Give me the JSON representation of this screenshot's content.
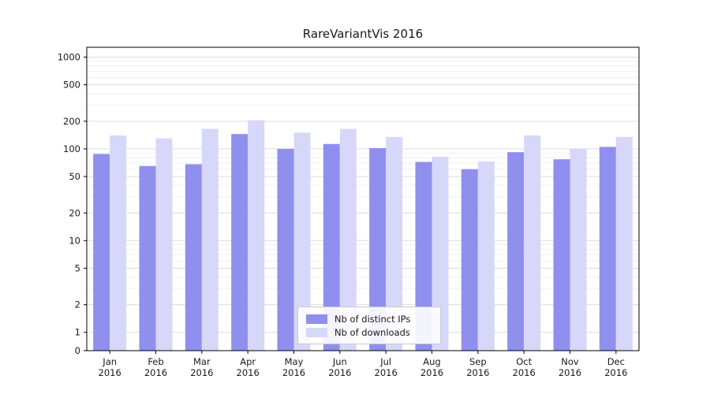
{
  "title": "RareVariantVis 2016",
  "chart_data": {
    "type": "bar",
    "scale": "symlog",
    "title": "RareVariantVis 2016",
    "categories": [
      "Jan",
      "Feb",
      "Mar",
      "Apr",
      "May",
      "Jun",
      "Jul",
      "Aug",
      "Sep",
      "Oct",
      "Nov",
      "Dec"
    ],
    "year": "2016",
    "series": [
      {
        "name": "Nb of distinct IPs",
        "color": "#8f8fee",
        "values": [
          88,
          65,
          68,
          145,
          100,
          113,
          102,
          72,
          60,
          92,
          77,
          105
        ]
      },
      {
        "name": "Nb of downloads",
        "color": "#d7d7f9",
        "values": [
          140,
          130,
          165,
          205,
          150,
          165,
          135,
          82,
          73,
          140,
          100,
          135
        ]
      }
    ],
    "yticks": [
      0,
      1,
      2,
      5,
      10,
      20,
      50,
      100,
      200,
      500,
      1000
    ],
    "ylim": [
      0,
      1000
    ],
    "xlabel": "",
    "ylabel": "",
    "grid": true,
    "legend_position": "lower center",
    "colors": {
      "grid_major": "#dcdcdc",
      "grid_minor": "#efefef",
      "spine": "#000000",
      "text": "#1a1a1a"
    }
  }
}
